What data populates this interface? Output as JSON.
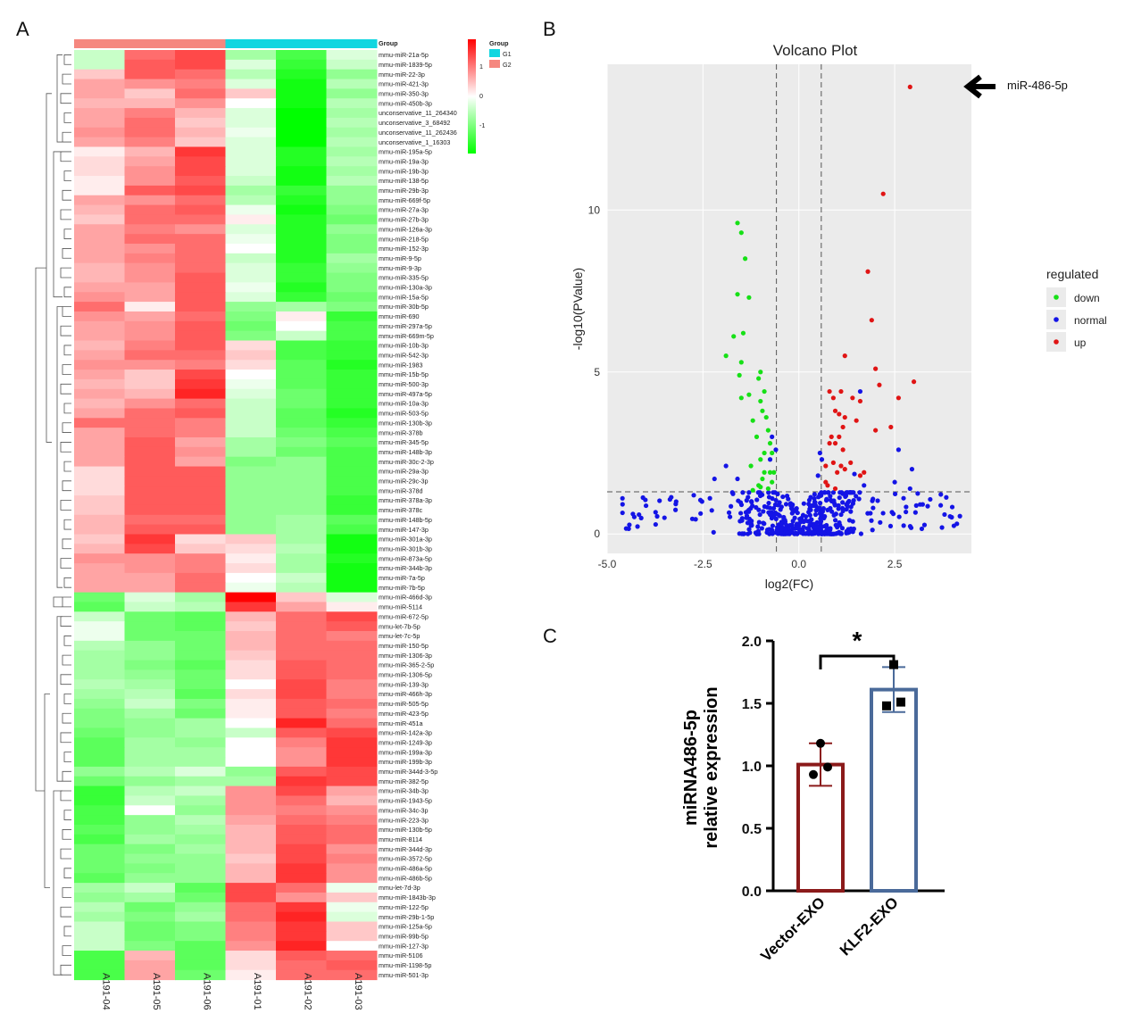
{
  "panels": {
    "a": "A",
    "b": "B",
    "c": "C"
  },
  "colors": {
    "high": "#ff0000",
    "mid": "#ffffff",
    "low": "#00ff00",
    "g1": "#11d6e0",
    "g2": "#f5877f",
    "down": "#16e016",
    "normal": "#1414e6",
    "up": "#e01414",
    "vector_bar": "#8b1a1a",
    "klf2_bar": "#4a6a9a"
  },
  "heatmap": {
    "group_title": "Group",
    "legend_title": "Group",
    "scale_ticks": [
      "1",
      "0",
      "-1"
    ],
    "groups": [
      {
        "name": "G1",
        "color": "#11d6e0"
      },
      {
        "name": "G2",
        "color": "#f5877f"
      }
    ],
    "samples": [
      "A191-04",
      "A191-05",
      "A191-06",
      "A191-01",
      "A191-02",
      "A191-03"
    ],
    "sample_groups": [
      "G2",
      "G2",
      "G2",
      "G1",
      "G1",
      "G1"
    ],
    "genes": [
      "mmu-miR-21a-5p",
      "mmu-miR-1839-5p",
      "mmu-miR-22-3p",
      "mmu-miR-421-3p",
      "mmu-miR-350-3p",
      "mmu-miR-450b-3p",
      "unconservative_11_264340",
      "unconservative_3_68492",
      "unconservative_11_262436",
      "unconservative_1_16303",
      "mmu-miR-195a-5p",
      "mmu-miR-19a-3p",
      "mmu-miR-19b-3p",
      "mmu-miR-138-5p",
      "mmu-miR-29b-3p",
      "mmu-miR-669f-5p",
      "mmu-miR-27a-3p",
      "mmu-miR-27b-3p",
      "mmu-miR-126a-3p",
      "mmu-miR-218-5p",
      "mmu-miR-152-3p",
      "mmu-miR-9-5p",
      "mmu-miR-9-3p",
      "mmu-miR-335-5p",
      "mmu-miR-130a-3p",
      "mmu-miR-15a-5p",
      "mmu-miR-30b-5p",
      "mmu-miR-690",
      "mmu-miR-297a-5p",
      "mmu-miR-669m-5p",
      "mmu-miR-10b-3p",
      "mmu-miR-542-3p",
      "mmu-miR-1983",
      "mmu-miR-15b-5p",
      "mmu-miR-500-3p",
      "mmu-miR-497a-5p",
      "mmu-miR-10a-3p",
      "mmu-miR-503-5p",
      "mmu-miR-130b-3p",
      "mmu-miR-378b",
      "mmu-miR-345-5p",
      "mmu-miR-148b-3p",
      "mmu-miR-30c-2-3p",
      "mmu-miR-29a-3p",
      "mmu-miR-29c-3p",
      "mmu-miR-378d",
      "mmu-miR-378a-3p",
      "mmu-miR-378c",
      "mmu-miR-148b-5p",
      "mmu-miR-147-3p",
      "mmu-miR-301a-3p",
      "mmu-miR-301b-3p",
      "mmu-miR-873a-5p",
      "mmu-miR-344b-3p",
      "mmu-miR-7a-5p",
      "mmu-miR-7b-5p",
      "mmu-miR-466d-3p",
      "mmu-miR-5114",
      "mmu-miR-672-5p",
      "mmu-let-7b-5p",
      "mmu-let-7c-5p",
      "mmu-miR-150-5p",
      "mmu-miR-1306-3p",
      "mmu-miR-365-2-5p",
      "mmu-miR-1306-5p",
      "mmu-miR-139-3p",
      "mmu-miR-466h-3p",
      "mmu-miR-505-5p",
      "mmu-miR-423-5p",
      "mmu-miR-451a",
      "mmu-miR-142a-3p",
      "mmu-miR-1249-3p",
      "mmu-miR-199a-3p",
      "mmu-miR-199b-3p",
      "mmu-miR-344d-3-5p",
      "mmu-miR-382-5p",
      "mmu-miR-34b-3p",
      "mmu-miR-1943-5p",
      "mmu-miR-34c-3p",
      "mmu-miR-223-3p",
      "mmu-miR-130b-5p",
      "mmu-miR-8114",
      "mmu-miR-344d-3p",
      "mmu-miR-3572-5p",
      "mmu-miR-486a-5p",
      "mmu-miR-486b-5p",
      "mmu-let-7d-3p",
      "mmu-miR-1843b-3p",
      "mmu-miR-122-5p",
      "mmu-miR-29b-1-5p",
      "mmu-miR-125a-5p",
      "mmu-miR-99b-5p",
      "mmu-miR-127-3p",
      "mmu-miR-5106",
      "mmu-miR-1198-5p",
      "mmu-miR-501-3p"
    ],
    "z": [
      [
        -0.3,
        0.8,
        1.0,
        -0.5,
        -1.0,
        -0.2
      ],
      [
        -0.3,
        0.9,
        1.0,
        -0.2,
        -1.1,
        -0.3
      ],
      [
        0.3,
        0.9,
        0.8,
        -0.4,
        -1.2,
        -0.6
      ],
      [
        0.5,
        0.6,
        0.7,
        -0.2,
        -1.3,
        -0.4
      ],
      [
        0.5,
        0.3,
        0.8,
        0.3,
        -1.3,
        -0.6
      ],
      [
        0.4,
        0.4,
        0.6,
        0.0,
        -1.3,
        -0.4
      ],
      [
        0.5,
        0.7,
        0.4,
        -0.2,
        -1.6,
        -0.5
      ],
      [
        0.5,
        0.8,
        0.3,
        -0.2,
        -1.6,
        -0.4
      ],
      [
        0.6,
        0.8,
        0.4,
        -0.1,
        -1.5,
        -0.5
      ],
      [
        0.5,
        0.7,
        0.3,
        -0.2,
        -1.5,
        -0.4
      ],
      [
        0.1,
        0.4,
        1.1,
        -0.2,
        -1.2,
        -0.5
      ],
      [
        0.2,
        0.5,
        1.0,
        -0.2,
        -1.2,
        -0.4
      ],
      [
        0.2,
        0.6,
        1.0,
        -0.2,
        -1.3,
        -0.5
      ],
      [
        0.1,
        0.6,
        0.9,
        -0.3,
        -1.3,
        -0.4
      ],
      [
        0.1,
        0.9,
        1.0,
        -0.5,
        -1.1,
        -0.6
      ],
      [
        0.5,
        0.6,
        0.8,
        -0.4,
        -1.2,
        -0.6
      ],
      [
        0.4,
        0.8,
        0.9,
        -0.1,
        -1.3,
        -0.7
      ],
      [
        0.3,
        0.8,
        0.8,
        0.1,
        -1.2,
        -0.8
      ],
      [
        0.5,
        0.7,
        0.6,
        -0.2,
        -1.2,
        -0.6
      ],
      [
        0.5,
        0.8,
        0.8,
        -0.1,
        -1.2,
        -0.7
      ],
      [
        0.5,
        0.6,
        0.8,
        0.0,
        -1.2,
        -0.7
      ],
      [
        0.5,
        0.7,
        0.8,
        -0.3,
        -1.2,
        -0.5
      ],
      [
        0.4,
        0.6,
        0.8,
        -0.2,
        -1.1,
        -0.6
      ],
      [
        0.4,
        0.6,
        0.9,
        -0.2,
        -1.1,
        -0.7
      ],
      [
        0.5,
        0.5,
        0.9,
        -0.1,
        -1.2,
        -0.7
      ],
      [
        0.6,
        0.5,
        0.9,
        -0.2,
        -1.1,
        -0.8
      ],
      [
        0.8,
        0.1,
        0.9,
        -0.6,
        -0.5,
        -0.7
      ],
      [
        0.6,
        0.5,
        0.8,
        -0.7,
        0.1,
        -1.1
      ],
      [
        0.5,
        0.6,
        0.9,
        -0.8,
        0.0,
        -1.0
      ],
      [
        0.5,
        0.6,
        0.9,
        -0.7,
        -0.3,
        -1.0
      ],
      [
        0.4,
        0.7,
        0.9,
        0.2,
        -1.0,
        -1.1
      ],
      [
        0.5,
        0.8,
        0.8,
        0.3,
        -1.0,
        -1.1
      ],
      [
        0.6,
        0.6,
        0.7,
        0.2,
        -0.9,
        -1.2
      ],
      [
        0.5,
        0.3,
        1.0,
        0.0,
        -0.9,
        -1.1
      ],
      [
        0.4,
        0.3,
        1.1,
        -0.1,
        -0.9,
        -1.1
      ],
      [
        0.5,
        0.4,
        1.2,
        -0.2,
        -0.8,
        -1.1
      ],
      [
        0.4,
        0.6,
        0.8,
        -0.3,
        -0.8,
        -1.1
      ],
      [
        0.5,
        0.8,
        0.9,
        -0.3,
        -0.9,
        -1.2
      ],
      [
        0.8,
        0.8,
        0.7,
        -0.3,
        -0.9,
        -1.1
      ],
      [
        0.5,
        0.8,
        0.7,
        -0.3,
        -0.8,
        -1.0
      ],
      [
        0.5,
        0.9,
        0.5,
        -0.5,
        -0.7,
        -0.9
      ],
      [
        0.5,
        0.9,
        0.6,
        -0.5,
        -0.8,
        -1.0
      ],
      [
        0.5,
        0.9,
        0.5,
        -0.7,
        -0.6,
        -1.0
      ],
      [
        0.2,
        0.9,
        0.9,
        -0.6,
        -0.6,
        -1.0
      ],
      [
        0.2,
        0.9,
        0.9,
        -0.6,
        -0.6,
        -1.0
      ],
      [
        0.2,
        0.9,
        0.9,
        -0.6,
        -0.6,
        -1.0
      ],
      [
        0.3,
        0.9,
        0.9,
        -0.6,
        -0.6,
        -1.1
      ],
      [
        0.3,
        0.9,
        0.9,
        -0.6,
        -0.6,
        -1.1
      ],
      [
        0.4,
        0.8,
        0.8,
        -0.6,
        -0.5,
        -0.9
      ],
      [
        0.4,
        0.9,
        0.9,
        -0.6,
        -0.5,
        -1.0
      ],
      [
        0.3,
        1.1,
        0.2,
        0.3,
        -0.5,
        -1.3
      ],
      [
        0.4,
        1.0,
        0.3,
        0.2,
        -0.4,
        -1.3
      ],
      [
        0.6,
        0.6,
        0.7,
        0.1,
        -0.5,
        -1.2
      ],
      [
        0.5,
        0.6,
        0.7,
        0.2,
        -0.5,
        -1.3
      ],
      [
        0.5,
        0.5,
        0.8,
        0.0,
        -0.3,
        -1.3
      ],
      [
        0.5,
        0.5,
        0.8,
        -0.1,
        -0.4,
        -1.3
      ],
      [
        -0.8,
        -0.2,
        -0.5,
        1.4,
        0.3,
        -0.2
      ],
      [
        -0.9,
        -0.3,
        -0.4,
        1.1,
        0.5,
        0.1
      ],
      [
        -0.3,
        -0.8,
        -0.9,
        0.4,
        0.8,
        1.0
      ],
      [
        -0.1,
        -0.8,
        -0.9,
        0.3,
        0.8,
        0.9
      ],
      [
        -0.1,
        -0.8,
        -0.8,
        0.4,
        0.8,
        0.7
      ],
      [
        -0.4,
        -0.6,
        -0.8,
        0.4,
        0.8,
        0.8
      ],
      [
        -0.5,
        -0.6,
        -0.8,
        0.3,
        0.8,
        0.8
      ],
      [
        -0.5,
        -0.7,
        -0.9,
        0.2,
        0.9,
        0.8
      ],
      [
        -0.5,
        -0.6,
        -0.8,
        0.2,
        0.9,
        0.8
      ],
      [
        -0.4,
        -0.5,
        -0.8,
        0.0,
        1.0,
        0.7
      ],
      [
        -0.5,
        -0.4,
        -0.9,
        0.2,
        1.0,
        0.7
      ],
      [
        -0.6,
        -0.3,
        -0.7,
        0.1,
        0.9,
        0.8
      ],
      [
        -0.7,
        -0.5,
        -0.8,
        0.1,
        0.9,
        0.7
      ],
      [
        -0.7,
        -0.6,
        -0.5,
        0.0,
        1.2,
        0.8
      ],
      [
        -0.8,
        -0.6,
        -0.5,
        -0.3,
        0.9,
        1.0
      ],
      [
        -0.9,
        -0.5,
        -0.6,
        0.0,
        0.7,
        1.1
      ],
      [
        -0.9,
        -0.5,
        -0.5,
        0.0,
        0.6,
        1.1
      ],
      [
        -0.9,
        -0.5,
        -0.5,
        0.0,
        0.6,
        1.1
      ],
      [
        -0.6,
        -0.4,
        -0.2,
        -0.6,
        0.9,
        1.0
      ],
      [
        -0.8,
        -0.6,
        -0.5,
        -0.5,
        1.1,
        1.0
      ],
      [
        -1.1,
        -0.4,
        -0.3,
        0.6,
        1.0,
        0.5
      ],
      [
        -1.1,
        -0.3,
        -0.5,
        0.6,
        0.8,
        0.4
      ],
      [
        -1.0,
        0.0,
        -0.6,
        0.6,
        0.7,
        0.6
      ],
      [
        -1.0,
        -0.6,
        -0.4,
        0.5,
        0.8,
        0.7
      ],
      [
        -0.9,
        -0.6,
        -0.5,
        0.4,
        0.9,
        0.8
      ],
      [
        -1.0,
        -0.5,
        -0.6,
        0.4,
        0.9,
        0.8
      ],
      [
        -0.8,
        -0.7,
        -0.5,
        0.4,
        1.0,
        0.6
      ],
      [
        -0.8,
        -0.6,
        -0.6,
        0.3,
        1.0,
        0.7
      ],
      [
        -0.8,
        -0.7,
        -0.6,
        0.4,
        1.1,
        0.6
      ],
      [
        -0.9,
        -0.6,
        -0.6,
        0.4,
        1.1,
        0.6
      ],
      [
        -0.5,
        -0.3,
        -0.9,
        1.0,
        0.8,
        -0.1
      ],
      [
        -0.6,
        -0.5,
        -0.8,
        1.0,
        0.6,
        0.3
      ],
      [
        -0.4,
        -0.8,
        -0.6,
        0.8,
        1.1,
        -0.1
      ],
      [
        -0.5,
        -0.7,
        -0.5,
        0.8,
        1.2,
        -0.2
      ],
      [
        -0.3,
        -0.8,
        -0.7,
        0.7,
        1.1,
        0.3
      ],
      [
        -0.3,
        -0.8,
        -0.7,
        0.7,
        1.1,
        0.3
      ],
      [
        -0.3,
        -0.7,
        -0.9,
        0.6,
        1.2,
        0.0
      ],
      [
        -1.0,
        0.4,
        -0.9,
        0.2,
        0.9,
        0.8
      ],
      [
        -1.0,
        0.5,
        -0.9,
        0.2,
        0.8,
        0.9
      ],
      [
        -1.0,
        0.5,
        -0.8,
        0.1,
        0.8,
        0.8
      ]
    ]
  },
  "volcano": {
    "title": "Volcano Plot",
    "xlabel": "log2(FC)",
    "ylabel": "-log10(PValue)",
    "legend_title": "regulated",
    "legend": [
      "down",
      "normal",
      "up"
    ],
    "annotation": "miR-486-5p"
  },
  "bar": {
    "ylabel_line1": "miRNA486-5p",
    "ylabel_line2": "relative expression",
    "significance": "*"
  },
  "chart_data": [
    {
      "type": "heatmap",
      "note_rows": "96 miRNAs x 6 samples, z-scored expression",
      "xlabels": [
        "A191-04",
        "A191-05",
        "A191-06",
        "A191-01",
        "A191-02",
        "A191-03"
      ],
      "color_scale_ticks": [
        1,
        0,
        -1
      ]
    },
    {
      "type": "scatter",
      "title": "Volcano Plot",
      "xlabel": "log2(FC)",
      "ylabel": "-log10(PValue)",
      "xlim": [
        -5.0,
        4.5
      ],
      "ylim": [
        -0.6,
        14.5
      ],
      "xticks": [
        "-5.0",
        "-2.5",
        "0.0",
        "2.5"
      ],
      "yticks": [
        "0",
        "5",
        "10"
      ],
      "thresholds": {
        "x": [
          -0.585,
          0.585
        ],
        "y": 1.3
      },
      "series": [
        {
          "name": "down",
          "points": [
            [
              -1.6,
              9.6
            ],
            [
              -1.5,
              9.3
            ],
            [
              -1.4,
              8.5
            ],
            [
              -1.6,
              7.4
            ],
            [
              -1.3,
              7.3
            ],
            [
              -1.45,
              6.2
            ],
            [
              -1.7,
              6.1
            ],
            [
              -1.9,
              5.5
            ],
            [
              -1.5,
              5.3
            ],
            [
              -1.55,
              4.9
            ],
            [
              -1.0,
              5.0
            ],
            [
              -1.05,
              4.8
            ],
            [
              -0.9,
              4.4
            ],
            [
              -1.3,
              4.3
            ],
            [
              -1.5,
              4.2
            ],
            [
              -1.0,
              4.1
            ],
            [
              -0.95,
              3.8
            ],
            [
              -0.85,
              3.6
            ],
            [
              -1.2,
              3.5
            ],
            [
              -0.8,
              3.2
            ],
            [
              -1.1,
              3.0
            ],
            [
              -0.75,
              2.8
            ],
            [
              -0.7,
              2.5
            ],
            [
              -1.0,
              2.3
            ],
            [
              -1.25,
              2.1
            ],
            [
              -0.9,
              1.9
            ],
            [
              -0.75,
              1.9
            ],
            [
              -0.95,
              1.7
            ],
            [
              -0.7,
              1.6
            ],
            [
              -1.05,
              1.5
            ],
            [
              -0.8,
              1.4
            ],
            [
              -1.2,
              1.35
            ],
            [
              -0.9,
              2.5
            ],
            [
              -0.65,
              1.9
            ],
            [
              -1.0,
              1.45
            ]
          ]
        },
        {
          "name": "up",
          "points": [
            [
              2.9,
              13.8
            ],
            [
              2.2,
              10.5
            ],
            [
              1.8,
              8.1
            ],
            [
              1.9,
              6.6
            ],
            [
              1.2,
              5.5
            ],
            [
              2.0,
              5.1
            ],
            [
              3.0,
              4.7
            ],
            [
              2.1,
              4.6
            ],
            [
              1.1,
              4.4
            ],
            [
              1.4,
              4.2
            ],
            [
              0.8,
              4.4
            ],
            [
              0.9,
              4.2
            ],
            [
              1.6,
              4.1
            ],
            [
              2.6,
              4.2
            ],
            [
              0.95,
              3.8
            ],
            [
              1.05,
              3.7
            ],
            [
              1.2,
              3.6
            ],
            [
              2.4,
              3.3
            ],
            [
              1.5,
              3.5
            ],
            [
              1.15,
              3.3
            ],
            [
              0.85,
              3.0
            ],
            [
              2.0,
              3.2
            ],
            [
              1.05,
              3.0
            ],
            [
              0.8,
              2.8
            ],
            [
              0.95,
              2.8
            ],
            [
              1.15,
              2.6
            ],
            [
              0.9,
              2.2
            ],
            [
              1.1,
              2.1
            ],
            [
              0.7,
              2.1
            ],
            [
              1.2,
              2.0
            ],
            [
              1.35,
              2.2
            ],
            [
              1.7,
              1.9
            ],
            [
              1.0,
              1.9
            ],
            [
              1.6,
              1.8
            ],
            [
              0.75,
              1.5
            ],
            [
              0.95,
              1.4
            ],
            [
              0.7,
              1.6
            ]
          ]
        },
        {
          "name": "normal",
          "points": "clustered around |log2FC| < 1 and -log10(P) < 1.3, plus scattered points from -4.6 to 4.2"
        }
      ]
    },
    {
      "type": "bar",
      "categories": [
        "Vector-EXO",
        "KLF2-EXO"
      ],
      "values": [
        1.01,
        1.61
      ],
      "error": [
        0.17,
        0.18
      ],
      "points": [
        [
          1.18,
          0.99,
          0.93
        ],
        [
          1.81,
          1.51,
          1.48
        ]
      ],
      "ylabel": "miRNA486-5p relative expression",
      "ylim": [
        0.0,
        2.0
      ],
      "yticks": [
        "0.0",
        "0.5",
        "1.0",
        "1.5",
        "2.0"
      ],
      "significance": "*"
    }
  ]
}
